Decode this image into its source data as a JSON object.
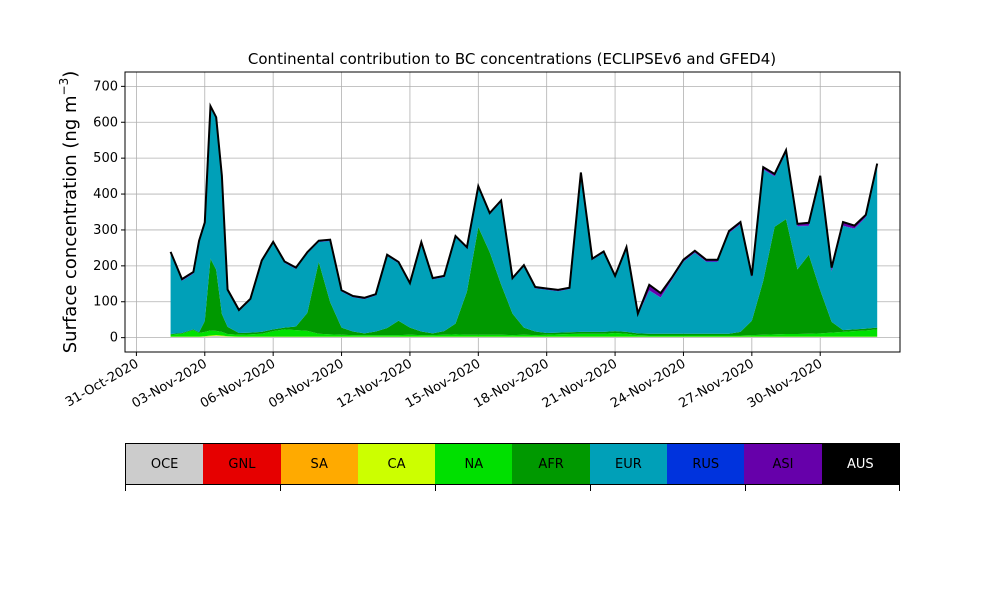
{
  "chart_data": {
    "type": "area",
    "stacked": true,
    "title": "Continental contribution to BC concentrations (ECLIPSEv6 and GFED4)",
    "ylabel": "Surface concentration (ng m",
    "ylabel_sup": "−3",
    "ylabel_close": ")",
    "ylim": [
      -40,
      740
    ],
    "yticks": [
      0,
      100,
      200,
      300,
      400,
      500,
      600,
      700
    ],
    "xlim": [
      "2020-10-30T12:00",
      "2020-12-03T12:00"
    ],
    "xticks": [
      "2020-10-31",
      "2020-11-03",
      "2020-11-06",
      "2020-11-09",
      "2020-11-12",
      "2020-11-15",
      "2020-11-18",
      "2020-11-21",
      "2020-11-24",
      "2020-11-27",
      "2020-11-30"
    ],
    "xtick_labels": [
      "31-Oct-2020",
      "03-Nov-2020",
      "06-Nov-2020",
      "09-Nov-2020",
      "12-Nov-2020",
      "15-Nov-2020",
      "18-Nov-2020",
      "21-Nov-2020",
      "24-Nov-2020",
      "27-Nov-2020",
      "30-Nov-2020"
    ],
    "grid": true,
    "legend_position": "bottom",
    "x": [
      "2020-11-01T12:00",
      "2020-11-02T00:00",
      "2020-11-02T12:00",
      "2020-11-02T18:00",
      "2020-11-03T00:00",
      "2020-11-03T06:00",
      "2020-11-03T12:00",
      "2020-11-03T18:00",
      "2020-11-04T00:00",
      "2020-11-04T12:00",
      "2020-11-05T00:00",
      "2020-11-05T12:00",
      "2020-11-06T00:00",
      "2020-11-06T12:00",
      "2020-11-07T00:00",
      "2020-11-07T12:00",
      "2020-11-08T00:00",
      "2020-11-08T12:00",
      "2020-11-09T00:00",
      "2020-11-09T12:00",
      "2020-11-10T00:00",
      "2020-11-10T12:00",
      "2020-11-11T00:00",
      "2020-11-11T12:00",
      "2020-11-12T00:00",
      "2020-11-12T12:00",
      "2020-11-13T00:00",
      "2020-11-13T12:00",
      "2020-11-14T00:00",
      "2020-11-14T12:00",
      "2020-11-15T00:00",
      "2020-11-15T12:00",
      "2020-11-16T00:00",
      "2020-11-16T12:00",
      "2020-11-17T00:00",
      "2020-11-17T12:00",
      "2020-11-18T00:00",
      "2020-11-18T12:00",
      "2020-11-19T00:00",
      "2020-11-19T12:00",
      "2020-11-20T00:00",
      "2020-11-20T12:00",
      "2020-11-21T00:00",
      "2020-11-21T12:00",
      "2020-11-22T00:00",
      "2020-11-22T12:00",
      "2020-11-23T00:00",
      "2020-11-23T12:00",
      "2020-11-24T00:00",
      "2020-11-24T12:00",
      "2020-11-25T00:00",
      "2020-11-25T12:00",
      "2020-11-26T00:00",
      "2020-11-26T12:00",
      "2020-11-27T00:00",
      "2020-11-27T12:00",
      "2020-11-28T00:00",
      "2020-11-28T12:00",
      "2020-11-29T00:00",
      "2020-11-29T12:00",
      "2020-11-30T00:00",
      "2020-11-30T12:00",
      "2020-12-01T00:00",
      "2020-12-01T12:00",
      "2020-12-02T00:00",
      "2020-12-02T12:00"
    ],
    "series": [
      {
        "name": "OCE",
        "color": "#cccccc",
        "values": [
          2,
          2,
          2,
          2,
          3,
          4,
          5,
          4,
          3,
          2,
          2,
          2,
          2,
          2,
          2,
          2,
          2,
          2,
          2,
          2,
          2,
          2,
          2,
          2,
          2,
          2,
          2,
          2,
          2,
          2,
          2,
          2,
          2,
          2,
          2,
          2,
          2,
          2,
          2,
          2,
          2,
          2,
          2,
          2,
          2,
          2,
          2,
          2,
          2,
          2,
          2,
          2,
          2,
          2,
          2,
          2,
          2,
          2,
          2,
          2,
          2,
          2,
          2,
          2,
          2,
          2
        ]
      },
      {
        "name": "GNL",
        "color": "#e60000",
        "values": [
          0,
          0,
          0,
          0,
          0,
          0,
          0,
          0,
          0,
          0,
          0,
          0,
          0,
          0,
          0,
          0,
          0,
          0,
          0,
          0,
          0,
          0,
          0,
          0,
          0,
          0,
          0,
          0,
          0,
          0,
          0,
          0,
          0,
          0,
          0,
          0,
          0,
          0,
          0,
          0,
          0,
          0,
          0,
          0,
          0,
          0,
          0,
          0,
          0,
          0,
          0,
          0,
          0,
          0,
          0,
          0,
          0,
          0,
          0,
          0,
          0,
          0,
          0,
          0,
          0,
          0
        ]
      },
      {
        "name": "SA",
        "color": "#ffaa00",
        "values": [
          0,
          0,
          0,
          0,
          0,
          0,
          0,
          0,
          0,
          0,
          0,
          0,
          0,
          0,
          0,
          0,
          0,
          0,
          0,
          0,
          0,
          0,
          0,
          0,
          0,
          0,
          0,
          0,
          0,
          0,
          0,
          0,
          0,
          0,
          0,
          0,
          0,
          0,
          0,
          0,
          0,
          0,
          0,
          0,
          0,
          0,
          0,
          0,
          0,
          0,
          0,
          0,
          0,
          0,
          0,
          0,
          0,
          0,
          0,
          0,
          0,
          0,
          0,
          0,
          0,
          0
        ]
      },
      {
        "name": "CA",
        "color": "#ccff00",
        "values": [
          1,
          1,
          1,
          1,
          1,
          2,
          2,
          2,
          1,
          1,
          1,
          1,
          1,
          1,
          1,
          1,
          1,
          1,
          1,
          1,
          1,
          1,
          1,
          1,
          1,
          1,
          1,
          1,
          1,
          1,
          1,
          1,
          1,
          1,
          1,
          1,
          1,
          1,
          1,
          1,
          1,
          1,
          1,
          1,
          1,
          1,
          1,
          1,
          1,
          1,
          1,
          1,
          1,
          1,
          1,
          1,
          1,
          1,
          1,
          1,
          1,
          1,
          1,
          1,
          1,
          1
        ]
      },
      {
        "name": "NA",
        "color": "#00e000",
        "values": [
          5,
          8,
          18,
          10,
          12,
          14,
          12,
          10,
          6,
          5,
          6,
          8,
          15,
          20,
          18,
          16,
          8,
          6,
          5,
          4,
          4,
          4,
          4,
          4,
          5,
          4,
          4,
          5,
          6,
          5,
          5,
          5,
          5,
          4,
          5,
          4,
          5,
          6,
          7,
          8,
          8,
          8,
          10,
          8,
          4,
          3,
          3,
          3,
          3,
          3,
          3,
          3,
          3,
          3,
          4,
          5,
          6,
          7,
          7,
          8,
          9,
          11,
          13,
          15,
          17,
          20
        ]
      },
      {
        "name": "AFR",
        "color": "#009900",
        "values": [
          2,
          2,
          2,
          2,
          30,
          200,
          170,
          50,
          20,
          5,
          5,
          5,
          5,
          5,
          10,
          50,
          200,
          90,
          20,
          10,
          5,
          10,
          20,
          40,
          20,
          10,
          5,
          10,
          30,
          120,
          300,
          230,
          140,
          60,
          20,
          10,
          5,
          5,
          5,
          5,
          5,
          5,
          5,
          5,
          5,
          5,
          5,
          5,
          5,
          5,
          5,
          5,
          5,
          10,
          40,
          150,
          300,
          320,
          180,
          220,
          120,
          30,
          5,
          5,
          5,
          5
        ]
      },
      {
        "name": "EUR",
        "color": "#00a0b8",
        "values": [
          225,
          145,
          155,
          250,
          270,
          420,
          420,
          380,
          100,
          60,
          90,
          195,
          240,
          180,
          160,
          165,
          55,
          170,
          100,
          95,
          95,
          100,
          200,
          160,
          120,
          245,
          150,
          150,
          240,
          120,
          110,
          105,
          230,
          95,
          170,
          120,
          120,
          115,
          120,
          440,
          200,
          220,
          150,
          230,
          50,
          120,
          100,
          150,
          200,
          225,
          200,
          200,
          280,
          300,
          120,
          310,
          140,
          185,
          120,
          80,
          310,
          140,
          290,
          280,
          310,
          450
        ]
      },
      {
        "name": "RUS",
        "color": "#0033dd",
        "values": [
          1,
          1,
          1,
          1,
          1,
          1,
          1,
          1,
          1,
          1,
          1,
          1,
          1,
          1,
          1,
          1,
          1,
          1,
          1,
          1,
          1,
          1,
          1,
          1,
          1,
          1,
          1,
          1,
          1,
          1,
          1,
          1,
          1,
          1,
          1,
          1,
          1,
          1,
          1,
          1,
          1,
          1,
          1,
          1,
          1,
          1,
          1,
          1,
          1,
          1,
          1,
          1,
          1,
          1,
          1,
          1,
          1,
          1,
          1,
          1,
          1,
          1,
          1,
          1,
          1,
          1
        ]
      },
      {
        "name": "ASI",
        "color": "#6600aa",
        "values": [
          3,
          4,
          4,
          4,
          4,
          4,
          4,
          4,
          3,
          3,
          3,
          3,
          3,
          3,
          3,
          3,
          3,
          3,
          3,
          3,
          3,
          3,
          3,
          3,
          3,
          3,
          3,
          3,
          3,
          3,
          3,
          3,
          3,
          3,
          3,
          3,
          3,
          3,
          3,
          3,
          3,
          3,
          3,
          5,
          4,
          15,
          12,
          6,
          5,
          5,
          5,
          5,
          5,
          5,
          5,
          6,
          6,
          6,
          6,
          8,
          8,
          10,
          10,
          8,
          6,
          6
        ]
      },
      {
        "name": "AUS",
        "color": "#000000",
        "values": [
          0,
          0,
          0,
          0,
          0,
          0,
          0,
          0,
          0,
          0,
          0,
          0,
          0,
          0,
          0,
          0,
          0,
          0,
          0,
          0,
          0,
          0,
          0,
          0,
          0,
          0,
          0,
          0,
          0,
          0,
          0,
          0,
          0,
          0,
          0,
          0,
          0,
          0,
          0,
          0,
          0,
          0,
          0,
          0,
          0,
          0,
          0,
          0,
          0,
          0,
          0,
          0,
          0,
          0,
          0,
          0,
          0,
          0,
          0,
          0,
          0,
          0,
          0,
          0,
          0,
          0
        ]
      }
    ]
  }
}
